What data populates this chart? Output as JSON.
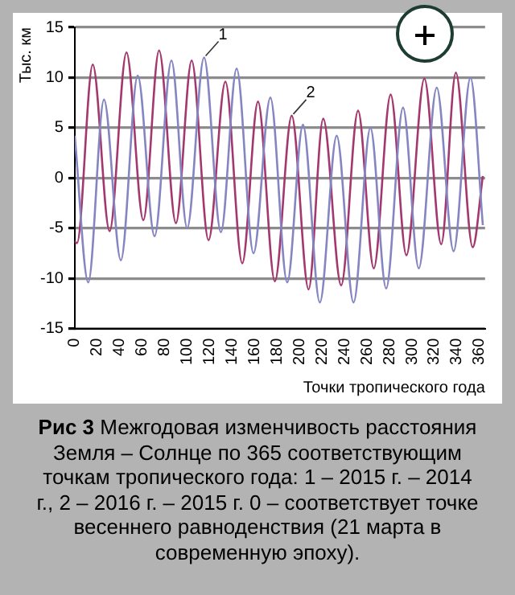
{
  "chart_data": {
    "type": "line",
    "xlabel": "Точки тропического года",
    "ylabel": "Тыс. км",
    "xlim": [
      0,
      365
    ],
    "xticks": [
      0,
      20,
      40,
      60,
      80,
      100,
      120,
      140,
      160,
      180,
      200,
      220,
      240,
      260,
      280,
      300,
      320,
      340,
      360
    ],
    "ylim": [
      -15,
      15
    ],
    "yticks": [
      -15,
      -10,
      -5,
      0,
      5,
      10,
      15
    ],
    "grid": "y",
    "legend": false,
    "marker": "none",
    "line_style": "solid",
    "series": [
      {
        "color": "#8585c2",
        "x": [
          0,
          12,
          26,
          41,
          56,
          71,
          86,
          100,
          115,
          130,
          144,
          159,
          174,
          189,
          203,
          218,
          233,
          248,
          263,
          277,
          292,
          306,
          322,
          337,
          352,
          363
        ],
        "values": [
          4.2,
          -10.4,
          7.8,
          -8.2,
          10.2,
          -5.8,
          11.7,
          -5,
          12,
          -5.4,
          10.9,
          -7.5,
          8,
          -10.4,
          5.3,
          -12.4,
          4.2,
          -12.4,
          5,
          -11,
          7,
          -9,
          9,
          -7.3,
          10,
          -4.7
        ]
      },
      {
        "color": "#a3386f",
        "x": [
          0,
          2,
          16,
          31,
          46,
          61,
          75,
          90,
          104,
          119,
          134,
          149,
          163,
          178,
          193,
          208,
          221,
          237,
          252,
          266,
          281,
          295,
          311,
          326,
          339,
          354,
          363
        ],
        "values": [
          -6.3,
          -6.5,
          11.3,
          -5.3,
          12.5,
          -4.2,
          12.7,
          -4.5,
          11.7,
          -6.2,
          9.6,
          -8.5,
          7.6,
          -10.3,
          6.2,
          -11.1,
          5.9,
          -10.7,
          6.7,
          -9,
          8.3,
          -7.7,
          9.9,
          -6.6,
          10.5,
          -6.9,
          0.2
        ]
      }
    ],
    "annotations": [
      {
        "text": "1",
        "x": 115,
        "y": 12
      },
      {
        "text": "2",
        "x": 193,
        "y": 6.2
      },
      "Рис 3",
      "Межгодовая изменчивость расстояния Земля – Солнце по 365 соответствующим точкам тропического года: 1 – 2015 г. – 2014 г., 2 – 2016 г. – 2015 г.  0 – соответствует точке весеннего равноденствия (21 марта в современную эпоху)."
    ]
  }
}
